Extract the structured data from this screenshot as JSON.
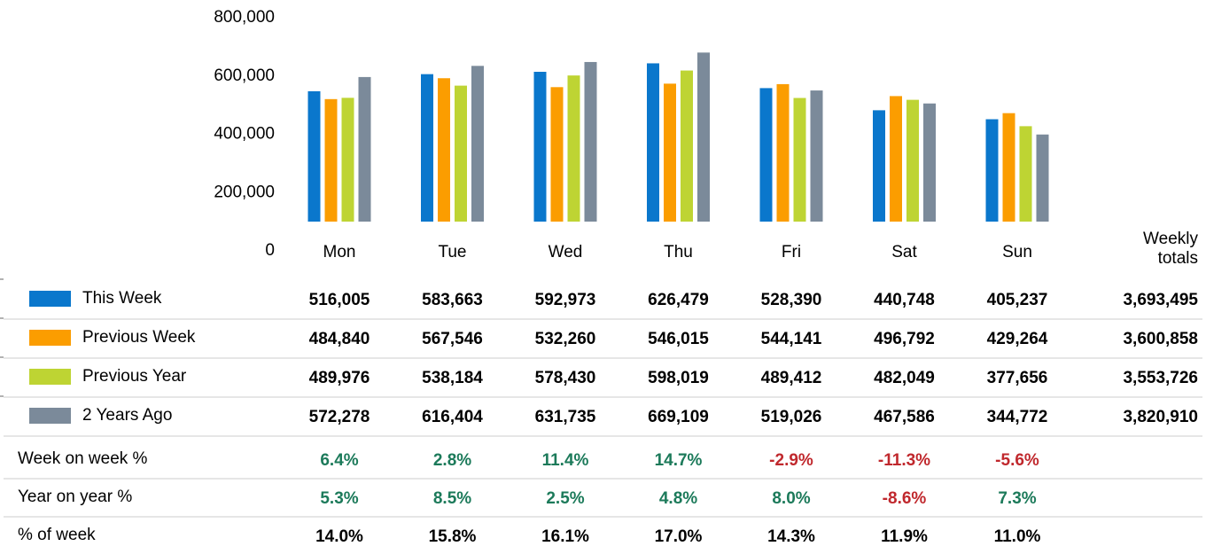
{
  "chart_data": {
    "type": "bar",
    "categories": [
      "Mon",
      "Tue",
      "Wed",
      "Thu",
      "Fri",
      "Sat",
      "Sun"
    ],
    "ylim": [
      0,
      800000
    ],
    "yticks": [
      {
        "value": 0,
        "label": "0"
      },
      {
        "value": 200000,
        "label": "200,000"
      },
      {
        "value": 400000,
        "label": "400,000"
      },
      {
        "value": 600000,
        "label": "600,000"
      },
      {
        "value": 800000,
        "label": "800,000"
      }
    ],
    "grid": false,
    "totals_label": "Weekly totals",
    "series": [
      {
        "name": "This Week",
        "color": "#0a77cc",
        "values": [
          516005,
          583663,
          592973,
          626479,
          528390,
          440748,
          405237
        ],
        "value_labels": [
          "516,005",
          "583,663",
          "592,973",
          "626,479",
          "528,390",
          "440,748",
          "405,237"
        ],
        "total": 3693495,
        "total_label": "3,693,495"
      },
      {
        "name": "Previous Week",
        "color": "#fb9d00",
        "values": [
          484840,
          567546,
          532260,
          546015,
          544141,
          496792,
          429264
        ],
        "value_labels": [
          "484,840",
          "567,546",
          "532,260",
          "546,015",
          "544,141",
          "496,792",
          "429,264"
        ],
        "total": 3600858,
        "total_label": "3,600,858"
      },
      {
        "name": "Previous Year",
        "color": "#bed433",
        "values": [
          489976,
          538184,
          578430,
          598019,
          489412,
          482049,
          377656
        ],
        "value_labels": [
          "489,976",
          "538,184",
          "578,430",
          "598,019",
          "489,412",
          "482,049",
          "377,656"
        ],
        "total": 3553726,
        "total_label": "3,553,726"
      },
      {
        "name": "2 Years Ago",
        "color": "#7b8a9a",
        "values": [
          572278,
          616404,
          631735,
          669109,
          519026,
          467586,
          344772
        ],
        "value_labels": [
          "572,278",
          "616,404",
          "631,735",
          "669,109",
          "519,026",
          "467,586",
          "344,772"
        ],
        "total": 3820910,
        "total_label": "3,820,910"
      }
    ],
    "metrics": [
      {
        "name": "Week on week %",
        "values": [
          6.4,
          2.8,
          11.4,
          14.7,
          -2.9,
          -11.3,
          -5.6
        ],
        "value_labels": [
          "6.4%",
          "2.8%",
          "11.4%",
          "14.7%",
          "-2.9%",
          "-11.3%",
          "-5.6%"
        ],
        "signed": true
      },
      {
        "name": "Year on year %",
        "values": [
          5.3,
          8.5,
          2.5,
          4.8,
          8.0,
          -8.6,
          7.3
        ],
        "value_labels": [
          "5.3%",
          "8.5%",
          "2.5%",
          "4.8%",
          "8.0%",
          "-8.6%",
          "7.3%"
        ],
        "signed": true
      },
      {
        "name": "% of week",
        "values": [
          14.0,
          15.8,
          16.1,
          17.0,
          14.3,
          11.9,
          11.0
        ],
        "value_labels": [
          "14.0%",
          "15.8%",
          "16.1%",
          "17.0%",
          "14.3%",
          "11.9%",
          "11.0%"
        ],
        "signed": false
      }
    ]
  }
}
